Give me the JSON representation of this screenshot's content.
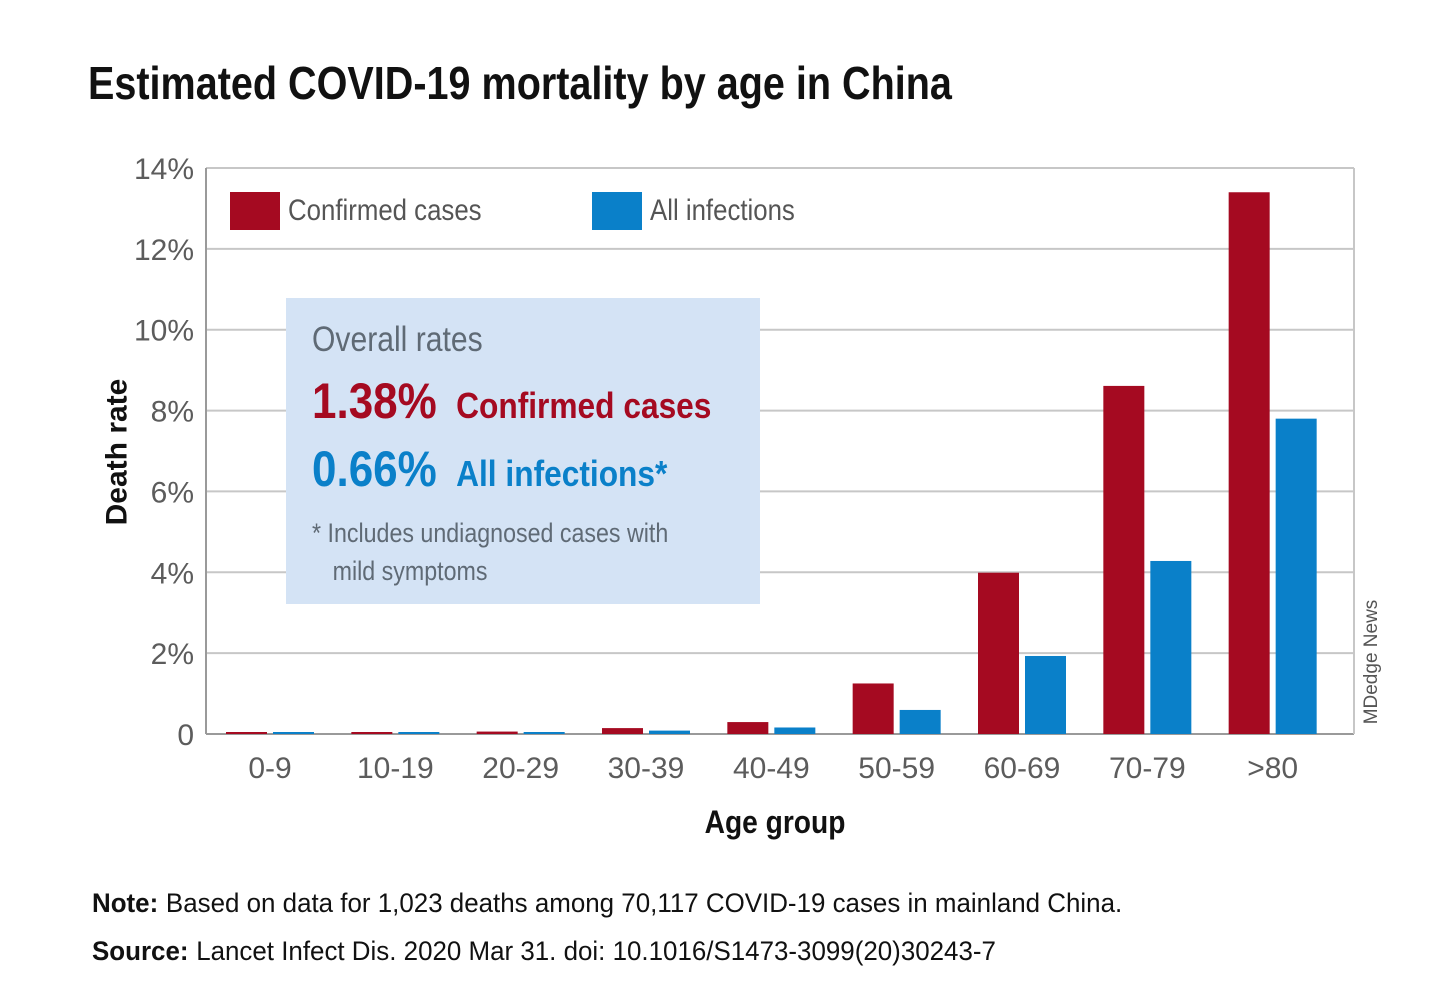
{
  "title": "Estimated COVID-19 mortality by age in China",
  "credit": "MDedge News",
  "colors": {
    "confirmed": "#a50a21",
    "all": "#0a80c9",
    "gridline": "#c7c7c7",
    "axis_text": "#5c5c5c",
    "callout_bg": "#d4e3f5"
  },
  "callout": {
    "heading": "Overall rates",
    "confirmed_value": "1.38%",
    "confirmed_label": "Confirmed cases",
    "all_value": "0.66%",
    "all_label": "All infections*",
    "footnote_line1": "* Includes undiagnosed cases with",
    "footnote_line2": "mild symptoms"
  },
  "chart_data": {
    "type": "bar",
    "xlabel": "Age group",
    "ylabel": "Death rate",
    "categories": [
      "0-9",
      "10-19",
      "20-29",
      "30-39",
      "40-49",
      "50-59",
      "60-69",
      "70-79",
      ">80"
    ],
    "series": [
      {
        "name": "Confirmed cases",
        "values": [
          0.0026,
          0.0148,
          0.06,
          0.146,
          0.295,
          1.25,
          3.99,
          8.61,
          13.4
        ]
      },
      {
        "name": "All infections",
        "values": [
          0.0016,
          0.007,
          0.031,
          0.084,
          0.161,
          0.595,
          1.93,
          4.28,
          7.8
        ]
      }
    ],
    "ylim": [
      0,
      14
    ],
    "yticks": [
      0,
      2,
      4,
      6,
      8,
      10,
      12,
      14
    ],
    "ytick_labels": [
      "0",
      "2%",
      "4%",
      "6%",
      "8%",
      "10%",
      "12%",
      "14%"
    ],
    "grid": true,
    "legend_position": "top-left"
  },
  "note": {
    "note_key": "Note:",
    "note_text": "Based on data for 1,023 deaths among 70,117 COVID-19 cases in mainland China.",
    "source_key": "Source:",
    "source_text": "Lancet Infect Dis. 2020 Mar 31. doi: 10.1016/S1473-3099(20)30243-7"
  }
}
